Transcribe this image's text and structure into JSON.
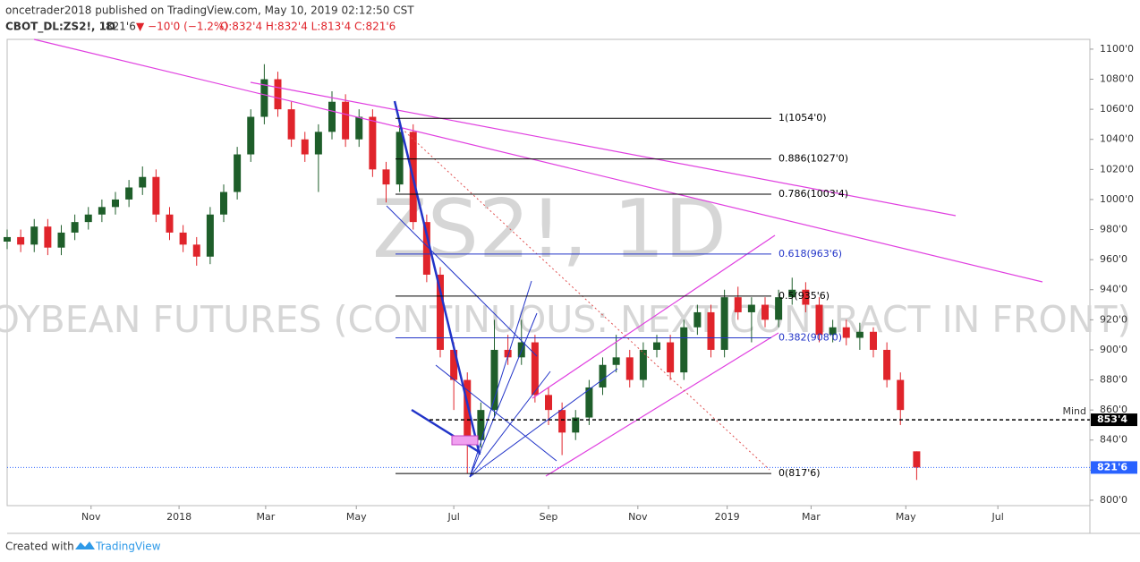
{
  "header": {
    "line1": "oncetrader2018 published on TradingView.com, May 10, 2019 02:12:50 CST",
    "symbol": "CBOT_DL:ZS2!, 1D",
    "last": "821'6",
    "change": "▼ −10'0 (−1.2%)",
    "ohlc": "O:832'4 H:832'4 L:813'4 C:821'6"
  },
  "chart_data": {
    "type": "candlestick",
    "watermark": [
      "ZS2!, 1D",
      "SOYBEAN FUTURES (CONTINUOUS: NEXT CONTRACT IN FRONT)"
    ],
    "x": [
      0,
      5,
      10,
      15,
      20,
      25,
      30,
      35,
      40,
      45,
      50,
      55,
      60,
      65,
      70,
      75,
      80,
      85,
      90,
      95,
      100,
      105,
      110,
      115,
      120,
      125,
      130,
      135,
      140,
      145,
      150,
      155,
      160,
      165,
      170,
      175,
      180,
      185,
      190,
      195,
      200,
      205,
      210,
      215,
      220,
      225,
      230,
      235,
      240,
      245,
      250,
      255,
      260,
      265,
      270,
      275,
      280,
      285,
      290,
      295,
      300,
      305,
      310,
      315,
      320,
      325,
      330,
      336
    ],
    "open": [
      972,
      975,
      970,
      982,
      968,
      978,
      985,
      990,
      995,
      1000,
      1008,
      1015,
      990,
      978,
      970,
      962,
      990,
      1005,
      1030,
      1055,
      1080,
      1060,
      1040,
      1030,
      1045,
      1065,
      1040,
      1055,
      1020,
      1010,
      1045,
      985,
      950,
      900,
      880,
      840,
      860,
      900,
      895,
      905,
      870,
      860,
      845,
      855,
      875,
      890,
      895,
      880,
      900,
      905,
      885,
      915,
      925,
      900,
      935,
      925,
      930,
      920,
      935,
      940,
      930,
      910,
      915,
      908,
      912,
      900,
      880,
      832.5
    ],
    "high": [
      980,
      980,
      987,
      987,
      983,
      990,
      995,
      1000,
      1005,
      1013,
      1022,
      1020,
      995,
      983,
      975,
      995,
      1010,
      1035,
      1060,
      1090,
      1085,
      1065,
      1045,
      1050,
      1072,
      1070,
      1060,
      1060,
      1025,
      1052,
      1050,
      990,
      955,
      905,
      885,
      865,
      920,
      910,
      920,
      910,
      875,
      865,
      860,
      880,
      895,
      910,
      900,
      905,
      910,
      910,
      920,
      930,
      930,
      940,
      942,
      935,
      935,
      940,
      948,
      945,
      935,
      920,
      920,
      918,
      915,
      905,
      885,
      832.5
    ],
    "low": [
      967,
      965,
      965,
      963,
      963,
      973,
      980,
      985,
      990,
      995,
      1003,
      985,
      973,
      965,
      956,
      957,
      985,
      1000,
      1025,
      1050,
      1055,
      1035,
      1025,
      1005,
      1040,
      1035,
      1035,
      1015,
      998,
      1005,
      980,
      945,
      895,
      860,
      817.75,
      835,
      855,
      890,
      890,
      865,
      850,
      830,
      840,
      850,
      870,
      885,
      875,
      875,
      895,
      880,
      880,
      910,
      895,
      895,
      920,
      905,
      915,
      915,
      930,
      925,
      905,
      905,
      903,
      900,
      895,
      875,
      850,
      813.5
    ],
    "close": [
      975,
      970,
      982,
      968,
      978,
      985,
      990,
      995,
      1000,
      1008,
      1015,
      990,
      978,
      970,
      962,
      990,
      1005,
      1030,
      1055,
      1080,
      1060,
      1040,
      1030,
      1045,
      1065,
      1040,
      1055,
      1020,
      1010,
      1045,
      985,
      950,
      900,
      880,
      840,
      860,
      900,
      895,
      905,
      870,
      860,
      845,
      855,
      875,
      890,
      895,
      880,
      900,
      905,
      885,
      915,
      925,
      900,
      935,
      925,
      930,
      920,
      935,
      940,
      930,
      910,
      915,
      908,
      912,
      900,
      880,
      860,
      821.75
    ],
    "up_color": "#1e5e2a",
    "down_color": "#e0242b",
    "xlim": [
      0,
      400
    ],
    "xticks": [
      {
        "value": 31,
        "label": "Nov"
      },
      {
        "value": 63.5,
        "label": "2018"
      },
      {
        "value": 95.5,
        "label": "Mar"
      },
      {
        "value": 129,
        "label": "May"
      },
      {
        "value": 165,
        "label": "Jul"
      },
      {
        "value": 200,
        "label": "Sep"
      },
      {
        "value": 233,
        "label": "Nov"
      },
      {
        "value": 266,
        "label": "2019"
      },
      {
        "value": 297,
        "label": "Mar"
      },
      {
        "value": 332,
        "label": "May"
      },
      {
        "value": 366,
        "label": "Jul"
      }
    ],
    "ylim": [
      796.4,
      1106.5
    ],
    "yticks": [
      {
        "value": 800,
        "label": "800'0"
      },
      {
        "value": 820,
        "label": "820'0"
      },
      {
        "value": 840,
        "label": "840'0"
      },
      {
        "value": 860,
        "label": "860'0"
      },
      {
        "value": 880,
        "label": "880'0"
      },
      {
        "value": 900,
        "label": "900'0"
      },
      {
        "value": 920,
        "label": "920'0"
      },
      {
        "value": 940,
        "label": "940'0"
      },
      {
        "value": 960,
        "label": "960'0"
      },
      {
        "value": 980,
        "label": "980'0"
      },
      {
        "value": 1000,
        "label": "1000'0"
      },
      {
        "value": 1020,
        "label": "1020'0"
      },
      {
        "value": 1040,
        "label": "1040'0"
      },
      {
        "value": 1060,
        "label": "1060'0"
      },
      {
        "value": 1080,
        "label": "1080'0"
      },
      {
        "value": 1100,
        "label": "1100'0"
      }
    ],
    "fib_levels": [
      {
        "label": "1(1054'0)",
        "value": 1054,
        "color": "#000000"
      },
      {
        "label": "0.886(1027'0)",
        "value": 1027,
        "color": "#000000"
      },
      {
        "label": "0.786(1003'4)",
        "value": 1003.5,
        "color": "#000000"
      },
      {
        "label": "0.618(963'6)",
        "value": 963.75,
        "color": "#2234c8"
      },
      {
        "label": "0.5(935'6)",
        "value": 935.75,
        "color": "#000000"
      },
      {
        "label": "0.382(908'0)",
        "value": 908,
        "color": "#2234c8"
      },
      {
        "label": "0(817'6)",
        "value": 817.75,
        "color": "#000000"
      }
    ],
    "price_lines": [
      {
        "name": "Mind",
        "label": "853'4",
        "value": 853.5,
        "color": "#000000"
      },
      {
        "label": "821'6",
        "value": 821.75,
        "color": "#2962ff"
      }
    ]
  },
  "footer": {
    "text": "Created with",
    "brand": "TradingView"
  }
}
